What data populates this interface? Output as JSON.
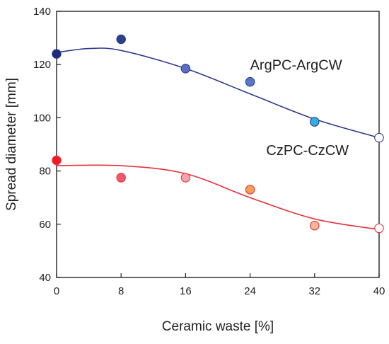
{
  "chart_data": {
    "type": "scatter",
    "title": "",
    "xlabel": "Ceramic waste [%]",
    "ylabel": "Spread diameter [mm]",
    "xlim": [
      0,
      40
    ],
    "ylim": [
      40,
      140
    ],
    "xticks": [
      "0",
      "8",
      "16",
      "24",
      "32",
      "40"
    ],
    "yticks": [
      "40",
      "60",
      "80",
      "100",
      "120",
      "140"
    ],
    "grid": false,
    "series": [
      {
        "name": "ArgPC-ArgCW",
        "line_color": "#2e3a8f",
        "x": [
          0,
          8,
          16,
          24,
          32,
          40
        ],
        "y": [
          124,
          129.5,
          118.5,
          113.5,
          98.5,
          92.5
        ],
        "point_colors": [
          "#1f2a78",
          "#2f3f8f",
          "#5b6fc2",
          "#5577cc",
          "#2fb0df",
          "#ffffff"
        ],
        "fit": [
          [
            0,
            124.5
          ],
          [
            4,
            126
          ],
          [
            8,
            125.3
          ],
          [
            16,
            118.5
          ],
          [
            24,
            109
          ],
          [
            32,
            99.5
          ],
          [
            40,
            92.5
          ]
        ]
      },
      {
        "name": "CzPC-CzCW",
        "line_color": "#e8323c",
        "x": [
          0,
          8,
          16,
          24,
          32,
          40
        ],
        "y": [
          84,
          77.5,
          77.5,
          73,
          59.5,
          58.5
        ],
        "point_colors": [
          "#ef1c24",
          "#ee5a68",
          "#f4a5ab",
          "#f5a155",
          "#f5b79a",
          "#ffffff"
        ],
        "fit": [
          [
            0,
            82
          ],
          [
            8,
            82
          ],
          [
            16,
            79
          ],
          [
            24,
            70
          ],
          [
            32,
            62
          ],
          [
            40,
            58
          ]
        ]
      }
    ]
  }
}
